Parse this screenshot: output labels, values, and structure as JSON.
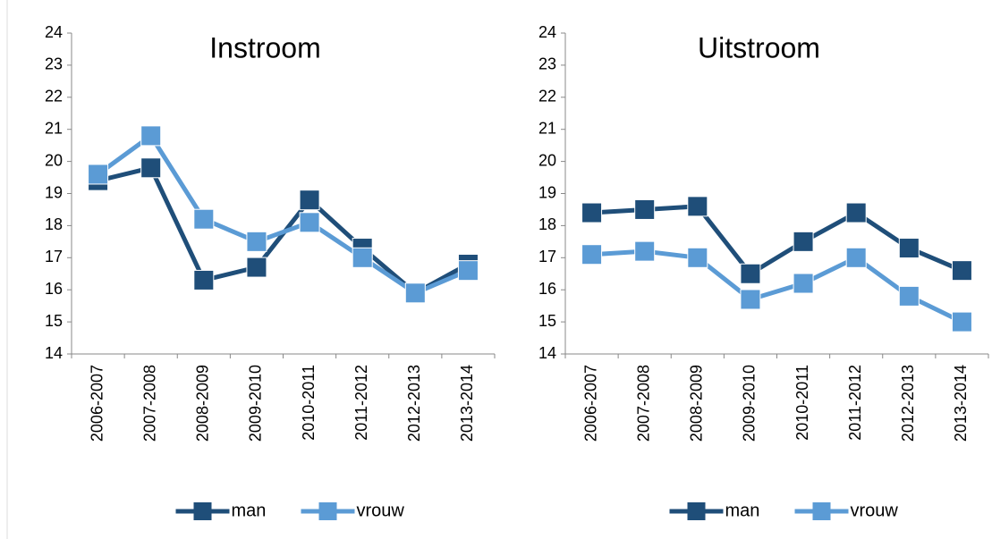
{
  "chart_data": [
    {
      "type": "line",
      "title": "Instroom",
      "categories": [
        "2006-2007",
        "2007-2008",
        "2008-2009",
        "2009-2010",
        "2010-2011",
        "2011-2012",
        "2012-2013",
        "2013-2014"
      ],
      "series": [
        {
          "name": "man",
          "color": "#1f4e79",
          "values": [
            19.4,
            19.8,
            16.3,
            16.7,
            18.8,
            17.3,
            15.9,
            16.8
          ]
        },
        {
          "name": "vrouw",
          "color": "#5b9bd5",
          "values": [
            19.6,
            20.8,
            18.2,
            17.5,
            18.1,
            17.0,
            15.9,
            16.6
          ]
        }
      ],
      "ylim": [
        14,
        24
      ],
      "yticks": [
        14,
        15,
        16,
        17,
        18,
        19,
        20,
        21,
        22,
        23,
        24
      ],
      "grid": false,
      "legend": "bottom"
    },
    {
      "type": "line",
      "title": "Uitstroom",
      "categories": [
        "2006-2007",
        "2007-2008",
        "2008-2009",
        "2009-2010",
        "2010-2011",
        "2011-2012",
        "2012-2013",
        "2013-2014"
      ],
      "series": [
        {
          "name": "man",
          "color": "#1f4e79",
          "values": [
            18.4,
            18.5,
            18.6,
            16.5,
            17.5,
            18.4,
            17.3,
            16.6
          ]
        },
        {
          "name": "vrouw",
          "color": "#5b9bd5",
          "values": [
            17.1,
            17.2,
            17.0,
            15.7,
            16.2,
            17.0,
            15.8,
            15.0
          ]
        }
      ],
      "ylim": [
        14,
        24
      ],
      "yticks": [
        14,
        15,
        16,
        17,
        18,
        19,
        20,
        21,
        22,
        23,
        24
      ],
      "grid": false,
      "legend": "bottom"
    }
  ]
}
